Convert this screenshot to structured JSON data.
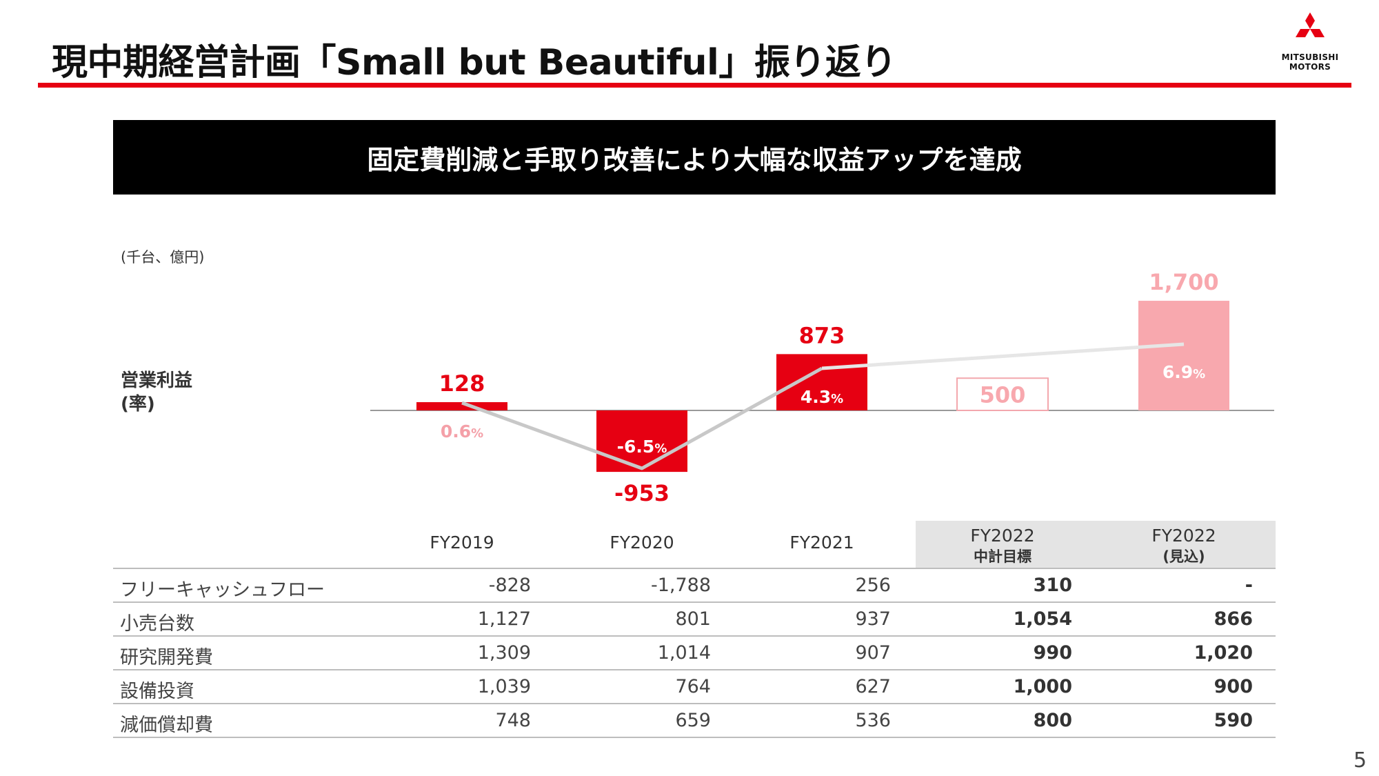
{
  "title": "現中期経営計画「Small but Beautiful」振り返り",
  "logo": {
    "line1": "MITSUBISHI",
    "line2": "MOTORS",
    "icon": "three-diamonds-icon"
  },
  "banner": "固定費削減と手取り改善により大幅な収益アップを達成",
  "unit_label": "(千台、億円)",
  "y_label_line1": "営業利益",
  "y_label_line2": "(率)",
  "colors": {
    "actual": "#e60012",
    "target_outline": "#f3a7ad",
    "forecast": "#f8a8ae",
    "margin_line": "#c8c8c8",
    "margin_line_future": "#e6e6e6"
  },
  "chart_data": {
    "type": "bar",
    "categories": [
      "FY2019",
      "FY2020",
      "FY2021",
      "FY2022 中計目標",
      "FY2022 (見込)"
    ],
    "values": [
      128,
      -953,
      873,
      500,
      1700
    ],
    "value_labels": [
      "128",
      "-953",
      "873",
      "500",
      "1,700"
    ],
    "margin_pct": [
      0.6,
      -6.5,
      4.3,
      null,
      6.9
    ],
    "margin_labels": [
      "0.6",
      "-6.5",
      "4.3",
      "",
      "6.9"
    ],
    "margin_suffix": "%",
    "styles": [
      "actual",
      "actual",
      "actual",
      "target",
      "forecast"
    ]
  },
  "table": {
    "headers": [
      {
        "l1": "FY2019",
        "l2": ""
      },
      {
        "l1": "FY2020",
        "l2": ""
      },
      {
        "l1": "FY2021",
        "l2": ""
      },
      {
        "l1": "FY2022",
        "l2": "中計目標"
      },
      {
        "l1": "FY2022",
        "l2": "(見込)"
      }
    ],
    "rows": [
      {
        "label": "フリーキャッシュフロー",
        "values": [
          "-828",
          "-1,788",
          "256",
          "310",
          "-"
        ]
      },
      {
        "label": "小売台数",
        "values": [
          "1,127",
          "801",
          "937",
          "1,054",
          "866"
        ]
      },
      {
        "label": "研究開発費",
        "values": [
          "1,309",
          "1,014",
          "907",
          "990",
          "1,020"
        ]
      },
      {
        "label": "設備投資",
        "values": [
          "1,039",
          "764",
          "627",
          "1,000",
          "900"
        ]
      },
      {
        "label": "減価償却費",
        "values": [
          "748",
          "659",
          "536",
          "800",
          "590"
        ]
      }
    ]
  },
  "page_number": "5"
}
